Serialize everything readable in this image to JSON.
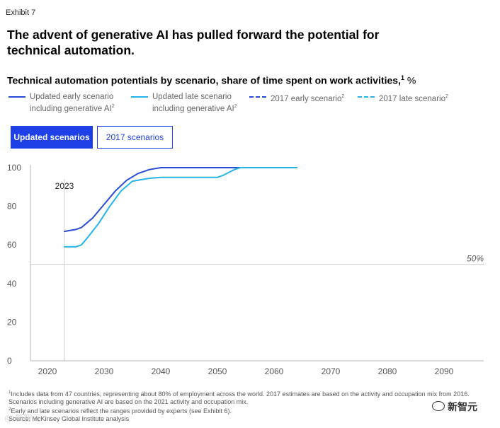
{
  "exhibit_label": "Exhibit 7",
  "headline": "The advent of generative AI has pulled forward the potential for technical automation.",
  "subtitle": {
    "text": "Technical automation potentials by scenario, share of time spent on work activities,",
    "footnote_mark": "1",
    "unit": " %"
  },
  "legend": [
    {
      "line1": "Updated early scenario",
      "line2": "including generative AI",
      "mark": "2",
      "color": "#2a4bd7",
      "dash": "solid"
    },
    {
      "line1": "Updated late scenario",
      "line2": "including generative AI",
      "mark": "2",
      "color": "#26b5ea",
      "dash": "solid"
    },
    {
      "line1": "2017 early scenario",
      "line2": "",
      "mark": "2",
      "color": "#2a4bd7",
      "dash": "dashed"
    },
    {
      "line1": "2017 late scenario",
      "line2": "",
      "mark": "2",
      "color": "#26b5ea",
      "dash": "dashed"
    }
  ],
  "tabs": {
    "updated_label": "Updated scenarios",
    "legacy_label": "2017 scenarios",
    "active": "updated"
  },
  "chart_data": {
    "type": "line",
    "title": "Technical automation potentials by scenario, share of time spent on work activities",
    "xlabel": "",
    "ylabel": "%",
    "xlim": [
      2017,
      2097
    ],
    "ylim": [
      0,
      100
    ],
    "x_ticks": [
      2020,
      2030,
      2040,
      2050,
      2060,
      2070,
      2080,
      2090
    ],
    "y_ticks": [
      0,
      20,
      40,
      60,
      80,
      100
    ],
    "grid": false,
    "marker_year": 2023,
    "marker_label": "2023",
    "reference_value": 50,
    "reference_label": "50%",
    "series": [
      {
        "name": "Updated early scenario including generative AI",
        "color": "#2a4bd7",
        "x": [
          2023,
          2025,
          2026,
          2028,
          2030,
          2032,
          2034,
          2036,
          2038,
          2040,
          2045,
          2050,
          2055,
          2060,
          2064
        ],
        "y": [
          67,
          68,
          69,
          74,
          81,
          88,
          93.5,
          97,
          99,
          100,
          100,
          100,
          100,
          100,
          100
        ]
      },
      {
        "name": "Updated late scenario including generative AI",
        "color": "#26b5ea",
        "x": [
          2023,
          2025,
          2026,
          2027,
          2029,
          2031,
          2033,
          2035,
          2038,
          2040,
          2045,
          2049,
          2050,
          2051,
          2053,
          2054,
          2055,
          2060,
          2064
        ],
        "y": [
          59,
          59,
          60,
          63.5,
          71,
          80,
          88,
          93,
          94.5,
          95,
          95,
          95,
          95,
          96,
          99,
          100,
          100,
          100,
          100
        ]
      }
    ]
  },
  "footnotes": [
    {
      "mark": "1",
      "text": "Includes data from 47 countries, representing about 80% of employment across the world. 2017 estimates are based on the activity and occupation mix from 2016. Scenarios including generative AI are based on the 2021 activity and occupation mix."
    },
    {
      "mark": "2",
      "text": "Early and late scenarios reflect the ranges provided by experts (see Exhibit 6)."
    },
    {
      "mark": "",
      "text": "Source: McKinsey Global Institute analysis"
    }
  ],
  "watermarks": {
    "left": "@ 新智元",
    "right": "新智元"
  }
}
